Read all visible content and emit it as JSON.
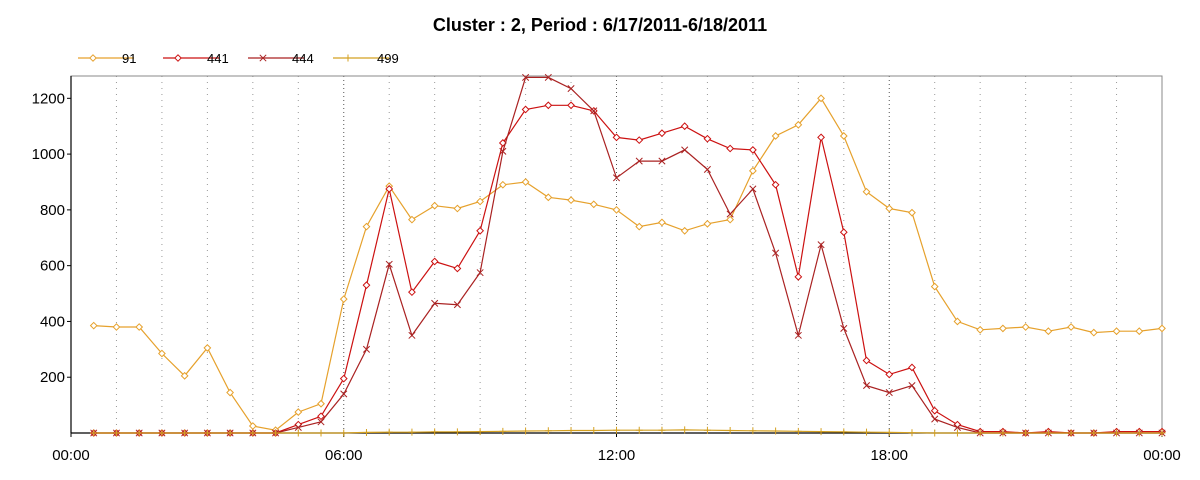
{
  "chart_data": {
    "type": "line",
    "title": "Cluster : 2, Period : 6/17/2011-6/18/2011",
    "xlabel": "",
    "ylabel": "",
    "xlim_hours": [
      0,
      24
    ],
    "ylim": [
      0,
      1280
    ],
    "x_ticks": [
      {
        "hours": 0,
        "label": "00:00"
      },
      {
        "hours": 6,
        "label": "06:00"
      },
      {
        "hours": 12,
        "label": "12:00"
      },
      {
        "hours": 18,
        "label": "18:00"
      },
      {
        "hours": 24,
        "label": "00:00"
      }
    ],
    "y_ticks": [
      200,
      400,
      600,
      800,
      1000,
      1200
    ],
    "grid": "dotted vertical every hour",
    "legend_position": "top-left",
    "series": [
      {
        "name": "91",
        "color": "#e6a12c",
        "marker": "diamond",
        "x": [
          0.5,
          1.0,
          1.5,
          2.0,
          2.5,
          3.0,
          3.5,
          4.0,
          4.5,
          5.0,
          5.5,
          6.0,
          6.5,
          7.0,
          7.5,
          8.0,
          8.5,
          9.0,
          9.5,
          10.0,
          10.5,
          11.0,
          11.5,
          12.0,
          12.5,
          13.0,
          13.5,
          14.0,
          14.5,
          15.0,
          15.5,
          16.0,
          16.5,
          17.0,
          17.5,
          18.0,
          18.5,
          19.0,
          19.5,
          20.0,
          20.5,
          21.0,
          21.5,
          22.0,
          22.5,
          23.0,
          23.5,
          24.0
        ],
        "y": [
          385,
          380,
          380,
          285,
          205,
          305,
          145,
          25,
          10,
          75,
          105,
          480,
          740,
          885,
          765,
          815,
          805,
          830,
          890,
          900,
          845,
          835,
          820,
          800,
          740,
          755,
          725,
          750,
          765,
          940,
          1065,
          1105,
          1200,
          1065,
          865,
          805,
          790,
          525,
          400,
          370,
          375,
          380,
          365,
          380,
          360,
          365,
          365,
          375
        ]
      },
      {
        "name": "441",
        "color": "#cc1111",
        "marker": "diamond",
        "x": [
          0.5,
          1.0,
          1.5,
          2.0,
          2.5,
          3.0,
          3.5,
          4.0,
          4.5,
          5.0,
          5.5,
          6.0,
          6.5,
          7.0,
          7.5,
          8.0,
          8.5,
          9.0,
          9.5,
          10.0,
          10.5,
          11.0,
          11.5,
          12.0,
          12.5,
          13.0,
          13.5,
          14.0,
          14.5,
          15.0,
          15.5,
          16.0,
          16.5,
          17.0,
          17.5,
          18.0,
          18.5,
          19.0,
          19.5,
          20.0,
          20.5,
          21.0,
          21.5,
          22.0,
          22.5,
          23.0,
          23.5,
          24.0
        ],
        "y": [
          0,
          0,
          0,
          0,
          0,
          0,
          0,
          0,
          0,
          30,
          60,
          195,
          530,
          875,
          505,
          615,
          590,
          725,
          1040,
          1160,
          1175,
          1175,
          1155,
          1060,
          1050,
          1075,
          1100,
          1055,
          1020,
          1015,
          890,
          560,
          1060,
          720,
          260,
          210,
          235,
          80,
          30,
          5,
          5,
          0,
          5,
          0,
          0,
          5,
          5,
          5
        ]
      },
      {
        "name": "444",
        "color": "#aa2222",
        "marker": "x",
        "x": [
          0.5,
          1.0,
          1.5,
          2.0,
          2.5,
          3.0,
          3.5,
          4.0,
          4.5,
          5.0,
          5.5,
          6.0,
          6.5,
          7.0,
          7.5,
          8.0,
          8.5,
          9.0,
          9.5,
          10.0,
          10.5,
          11.0,
          11.5,
          12.0,
          12.5,
          13.0,
          13.5,
          14.0,
          14.5,
          15.0,
          15.5,
          16.0,
          16.5,
          17.0,
          17.5,
          18.0,
          18.5,
          19.0,
          19.5,
          20.0,
          20.5,
          21.0,
          21.5,
          22.0,
          22.5,
          23.0,
          23.5,
          24.0
        ],
        "y": [
          0,
          0,
          0,
          0,
          0,
          0,
          0,
          0,
          0,
          20,
          40,
          140,
          300,
          605,
          350,
          465,
          460,
          575,
          1010,
          1275,
          1275,
          1235,
          1155,
          915,
          975,
          975,
          1015,
          945,
          785,
          875,
          645,
          350,
          675,
          375,
          170,
          145,
          170,
          50,
          20,
          0,
          0,
          0,
          0,
          0,
          0,
          0,
          0,
          0
        ]
      },
      {
        "name": "499",
        "color": "#d4a020",
        "marker": "plus",
        "x": [
          0.5,
          1.0,
          1.5,
          2.0,
          2.5,
          3.0,
          3.5,
          4.0,
          4.5,
          5.0,
          5.5,
          6.0,
          6.5,
          7.0,
          7.5,
          8.0,
          8.5,
          9.0,
          9.5,
          10.0,
          10.5,
          11.0,
          11.5,
          12.0,
          12.5,
          13.0,
          13.5,
          14.0,
          14.5,
          15.0,
          15.5,
          16.0,
          16.5,
          17.0,
          17.5,
          18.0,
          18.5,
          19.0,
          19.5,
          20.0,
          20.5,
          21.0,
          21.5,
          22.0,
          22.5,
          23.0,
          23.5,
          24.0
        ],
        "y": [
          0,
          0,
          0,
          0,
          0,
          0,
          0,
          0,
          0,
          0,
          0,
          0,
          2,
          3,
          3,
          4,
          4,
          5,
          6,
          7,
          8,
          9,
          9,
          10,
          10,
          10,
          11,
          10,
          9,
          8,
          7,
          6,
          5,
          4,
          3,
          2,
          1,
          0,
          0,
          0,
          0,
          0,
          0,
          0,
          0,
          0,
          0,
          0
        ]
      }
    ]
  }
}
